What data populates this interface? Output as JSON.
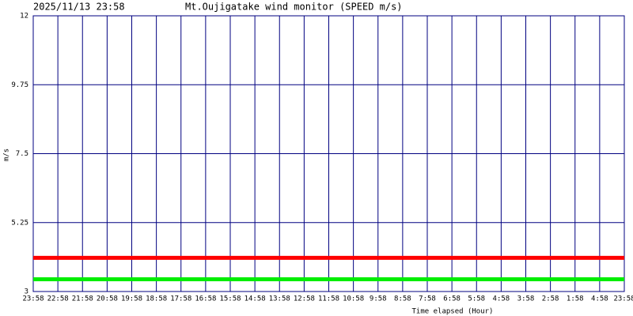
{
  "chart_data": {
    "type": "line",
    "timestamp": "2025/11/13 23:58",
    "title": "Mt.Oujigatake wind monitor (SPEED m/s)",
    "y_label": "m/s",
    "x_label": "Time elapsed (Hour)",
    "categories": [
      "23:58",
      "22:58",
      "21:58",
      "20:58",
      "19:58",
      "18:58",
      "17:58",
      "16:58",
      "15:58",
      "14:58",
      "13:58",
      "12:58",
      "11:58",
      "10:58",
      "9:58",
      "8:58",
      "7:58",
      "6:58",
      "5:58",
      "4:58",
      "3:58",
      "2:58",
      "1:58",
      "4:58",
      "23:58"
    ],
    "series": [
      {
        "color": "#ff0000",
        "values": [
          4.1,
          4.1,
          4.1,
          4.1,
          4.1,
          4.1,
          4.1,
          4.1,
          4.1,
          4.1,
          4.1,
          4.1,
          4.1,
          4.1,
          4.1,
          4.1,
          4.1,
          4.1,
          4.1,
          4.1,
          4.1,
          4.1,
          4.1,
          4.1,
          4.1
        ]
      },
      {
        "color": "#00ee00",
        "values": [
          3.4,
          3.4,
          3.4,
          3.4,
          3.4,
          3.4,
          3.4,
          3.4,
          3.4,
          3.4,
          3.4,
          3.4,
          3.4,
          3.4,
          3.4,
          3.4,
          3.4,
          3.4,
          3.4,
          3.4,
          3.4,
          3.4,
          3.4,
          3.4,
          3.4
        ]
      }
    ],
    "ylim": [
      3,
      12
    ],
    "yticks": [
      3,
      5.25,
      7.5,
      9.75,
      12
    ],
    "grid": true,
    "grid_color": "#000080"
  }
}
